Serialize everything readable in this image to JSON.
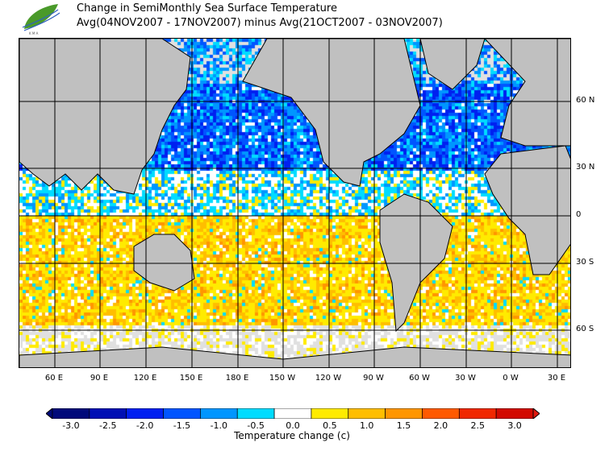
{
  "header": {
    "title_line1": "Change in SemiMonthly Sea Surface Temperature",
    "title_line2": "Avg(04NOV2007 - 17NOV2007) minus Avg(21OCT2007 - 03NOV2007)"
  },
  "map": {
    "lat_labels": [
      "60 N",
      "30 N",
      "0",
      "30 S",
      "60 S"
    ],
    "lon_labels": [
      "60 E",
      "90 E",
      "120 E",
      "150 E",
      "180 E",
      "150 W",
      "120 W",
      "90 W",
      "60 W",
      "30 W",
      "0 W",
      "30 E"
    ],
    "land_color": "#c0c0c0",
    "missing_color": "#e0e0e0"
  },
  "colorbar": {
    "ticks": [
      "-3.0",
      "-2.5",
      "-2.0",
      "-1.5",
      "-1.0",
      "-0.5",
      "0.0",
      "0.5",
      "1.0",
      "1.5",
      "2.0",
      "2.5",
      "3.0"
    ],
    "colors": [
      "#000a7a",
      "#0010b4",
      "#0020f0",
      "#0055ff",
      "#0096ff",
      "#00dcff",
      "#ffffff",
      "#ffeb00",
      "#ffbe00",
      "#ff9600",
      "#ff5a00",
      "#f02800",
      "#d20a00"
    ],
    "under_color": "#000a7a",
    "over_color": "#e01a10",
    "label": "Temperature change  (c)"
  }
}
